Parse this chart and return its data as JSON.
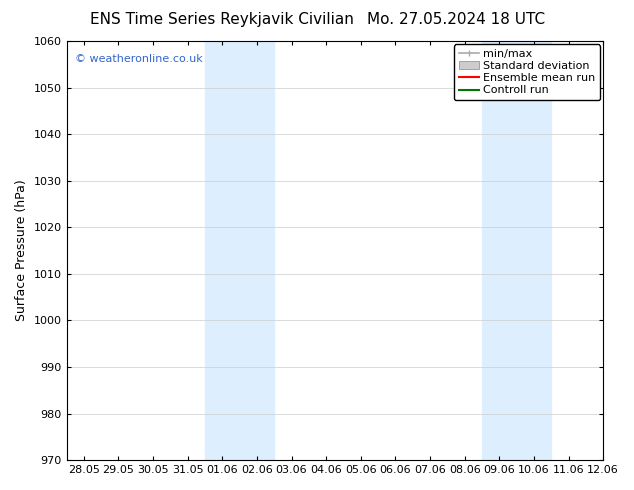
{
  "title_left": "ENS Time Series Reykjavik Civilian",
  "title_right": "Mo. 27.05.2024 18 UTC",
  "ylabel": "Surface Pressure (hPa)",
  "ylim": [
    970,
    1060
  ],
  "yticks": [
    970,
    980,
    990,
    1000,
    1010,
    1020,
    1030,
    1040,
    1050,
    1060
  ],
  "xtick_labels": [
    "28.05",
    "29.05",
    "30.05",
    "31.05",
    "01.06",
    "02.06",
    "03.06",
    "04.06",
    "05.06",
    "06.06",
    "07.06",
    "08.06",
    "09.06",
    "10.06",
    "11.06",
    "12.06"
  ],
  "shaded_bands": [
    {
      "x_start": 4,
      "x_end": 6
    },
    {
      "x_start": 12,
      "x_end": 14
    }
  ],
  "shade_color": "#ddeeff",
  "background_color": "#ffffff",
  "watermark_text": "© weatheronline.co.uk",
  "watermark_color": "#3366cc",
  "legend_entries": [
    {
      "label": "min/max",
      "color": "#aaaaaa",
      "lw": 1.2
    },
    {
      "label": "Standard deviation",
      "color": "#cccccc",
      "lw": 8
    },
    {
      "label": "Ensemble mean run",
      "color": "#ff0000",
      "lw": 1.5
    },
    {
      "label": "Controll run",
      "color": "#007700",
      "lw": 1.5
    }
  ],
  "title_fontsize": 11,
  "tick_fontsize": 8,
  "ylabel_fontsize": 9,
  "legend_fontsize": 8,
  "watermark_fontsize": 8,
  "grid_color": "#cccccc",
  "grid_lw": 0.5,
  "border_color": "#000000",
  "xlim_start": 0,
  "xlim_end": 15
}
